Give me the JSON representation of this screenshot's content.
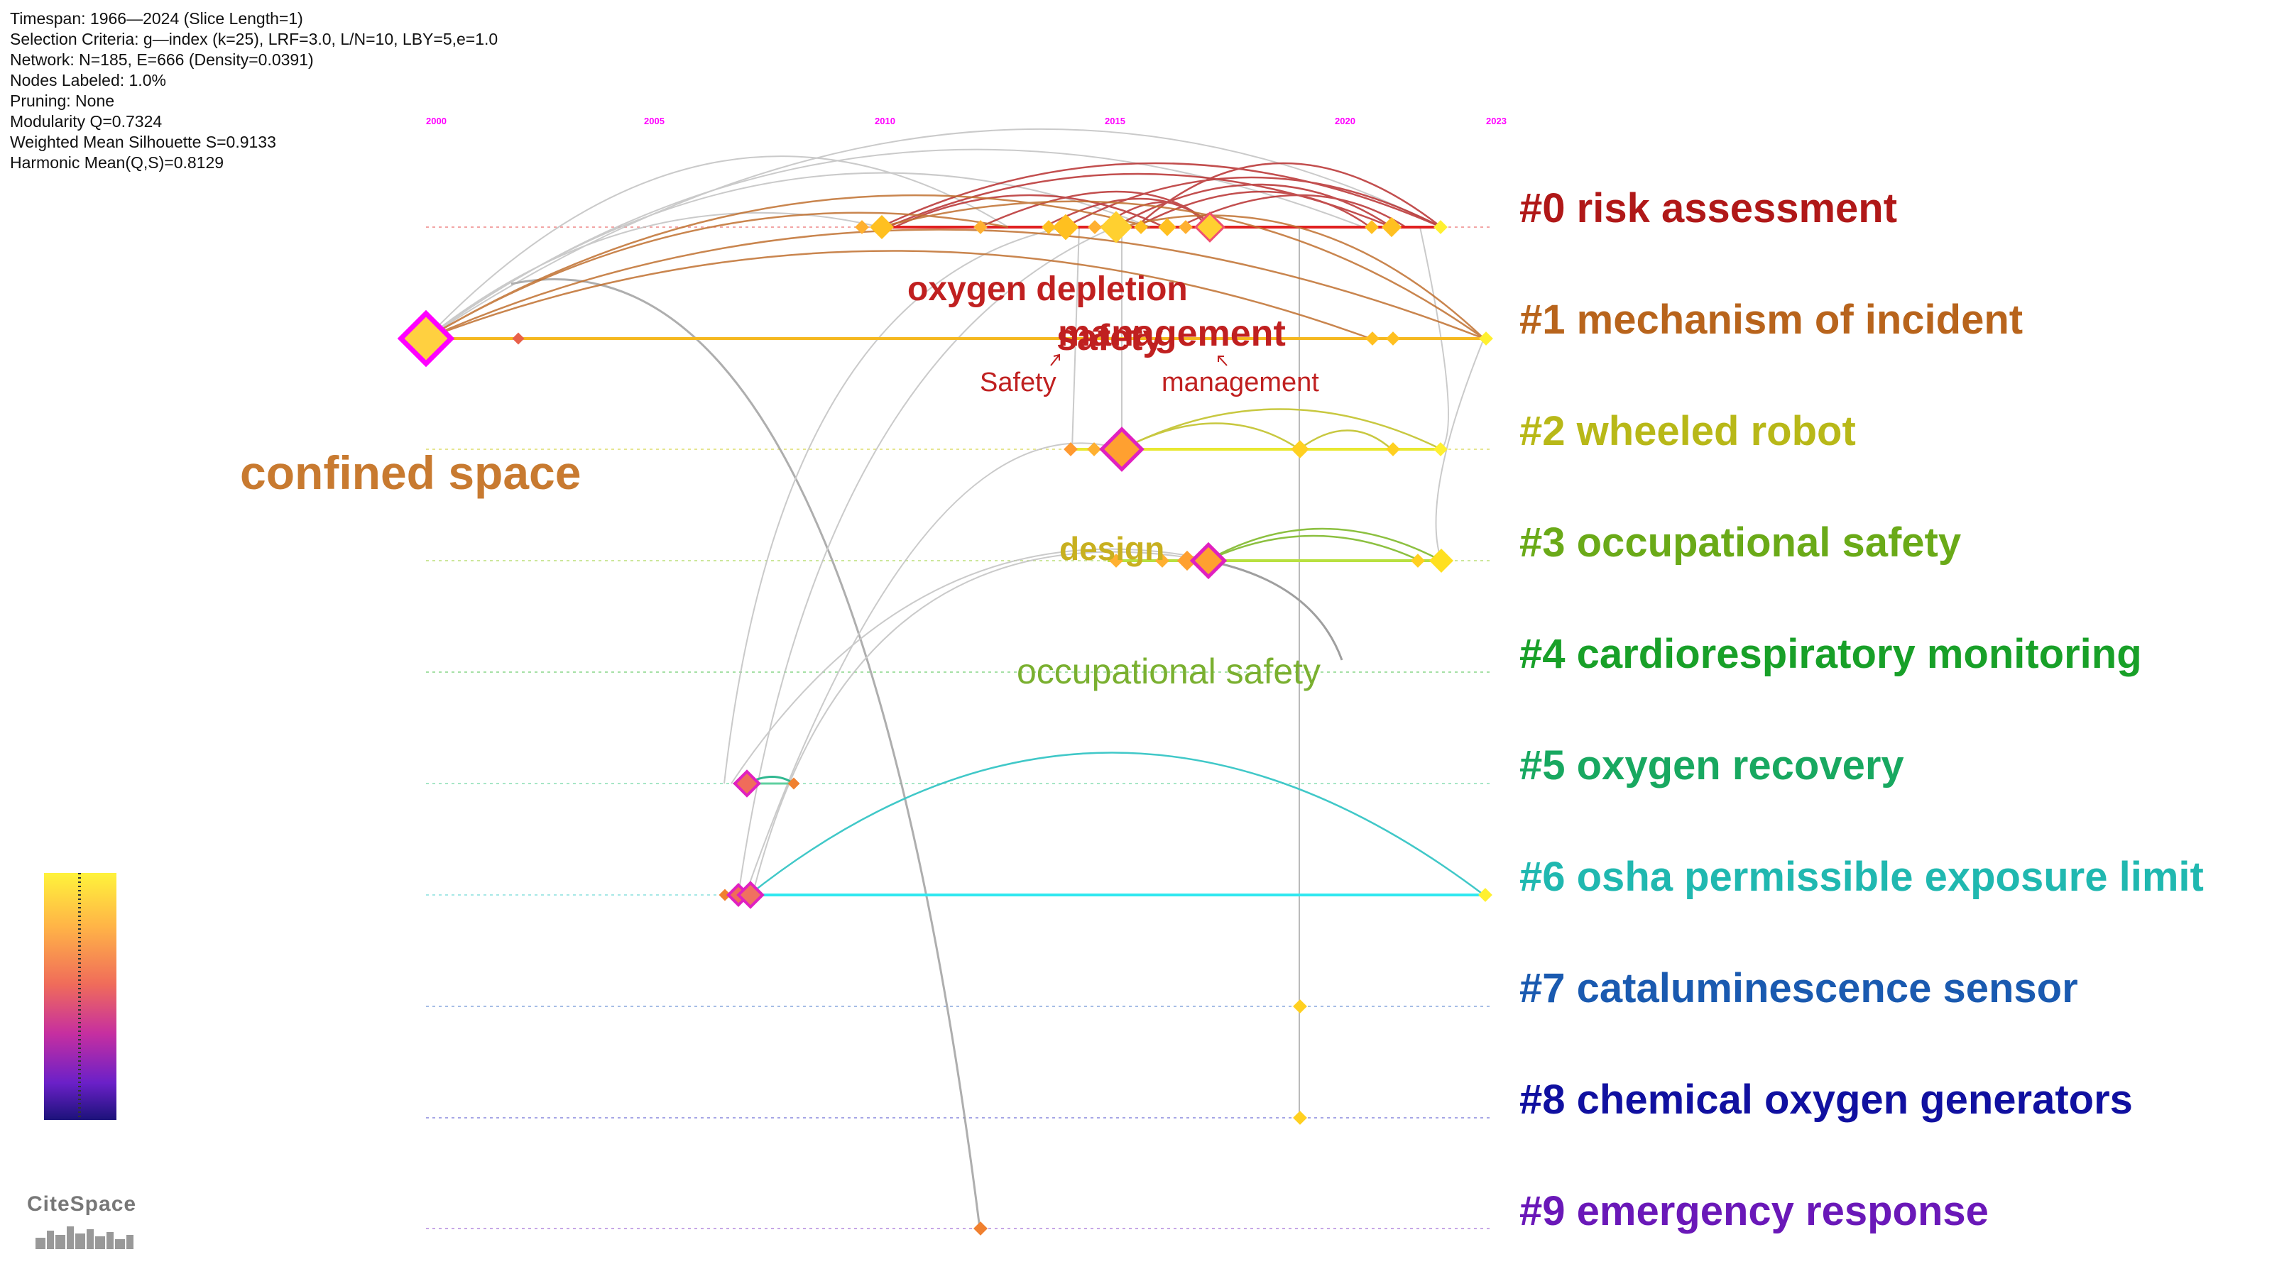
{
  "meta_lines": [
    "Timespan: 1966—2024 (Slice Length=1)",
    "Selection Criteria: g—index (k=25), LRF=3.0, L/N=10, LBY=5,e=1.0",
    "Network: N=185, E=666 (Density=0.0391)",
    "Nodes Labeled: 1.0%",
    "Pruning: None",
    "Modularity Q=0.7324",
    "Weighted Mean Silhouette S=0.9133",
    "Harmonic Mean(Q,S)=0.8129"
  ],
  "years": [
    "2000",
    "2005",
    "2010",
    "2015",
    "2020",
    "2023"
  ],
  "clusters": [
    {
      "label": "#0 risk assessment",
      "color": "#b01818"
    },
    {
      "label": "#1 mechanism of incident",
      "color": "#b8641c"
    },
    {
      "label": "#2 wheeled robot",
      "color": "#b8b818"
    },
    {
      "label": "#3 occupational safety",
      "color": "#6aaa18"
    },
    {
      "label": "#4 cardiorespiratory monitoring",
      "color": "#18a028"
    },
    {
      "label": "#5 oxygen recovery",
      "color": "#18a860"
    },
    {
      "label": "#6 osha permissible exposure limit",
      "color": "#20b8b0"
    },
    {
      "label": "#7 cataluminescence sensor",
      "color": "#1a5ab0"
    },
    {
      "label": "#8 chemical oxygen generators",
      "color": "#1010a0"
    },
    {
      "label": "#9 emergency response",
      "color": "#6a18b8"
    }
  ],
  "keywords": [
    {
      "text": "confined space",
      "color": "#c87a30"
    },
    {
      "text": "oxygen depletion",
      "color": "#c02020"
    },
    {
      "text": "safety",
      "color": "#c02020"
    },
    {
      "text": "management",
      "color": "#c02020"
    },
    {
      "text": "design",
      "color": "#c8b020"
    },
    {
      "text": "occupational safety",
      "color": "#7ab030"
    }
  ],
  "annotations": [
    "Safety",
    "management"
  ],
  "logo_text": "CiteSpace",
  "colorbar": {
    "top_color": "#fff33b",
    "bottom_color": "#1c127a"
  }
}
